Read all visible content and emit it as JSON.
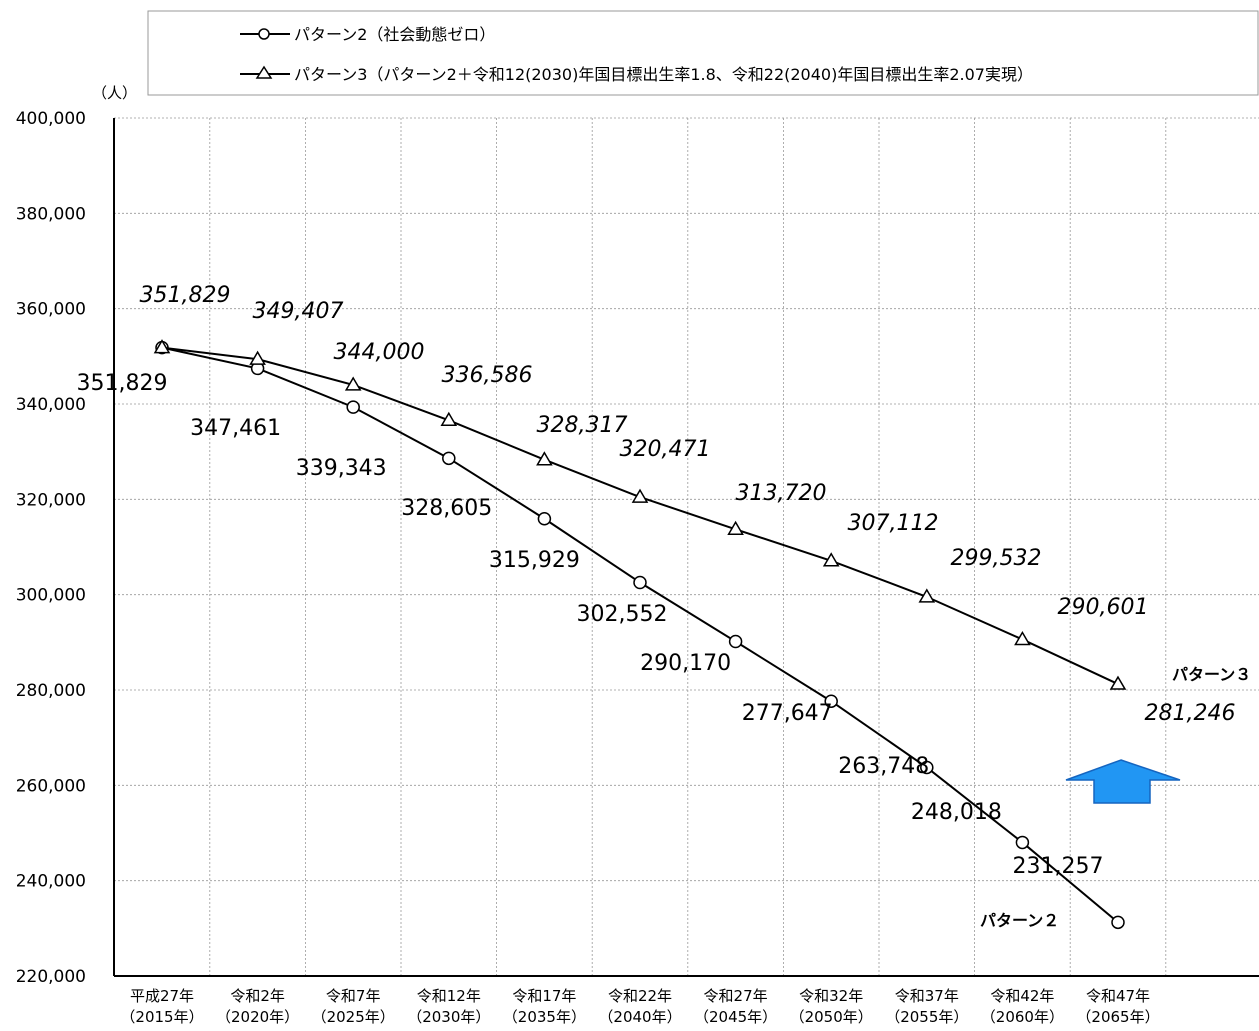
{
  "chart_data": {
    "type": "line",
    "ylabel_unit": "（人）",
    "ylim": [
      220000,
      400000
    ],
    "y_ticks": [
      "220,000",
      "240,000",
      "260,000",
      "280,000",
      "300,000",
      "320,000",
      "340,000",
      "360,000",
      "380,000",
      "400,000"
    ],
    "y_tick_values": [
      220000,
      240000,
      260000,
      280000,
      300000,
      320000,
      340000,
      360000,
      380000,
      400000
    ],
    "categories": [
      [
        "平成27年",
        "（2015年）"
      ],
      [
        "令和2年",
        "（2020年）"
      ],
      [
        "令和7年",
        "（2025年）"
      ],
      [
        "令和12年",
        "（2030年）"
      ],
      [
        "令和17年",
        "（2035年）"
      ],
      [
        "令和22年",
        "（2040年）"
      ],
      [
        "令和27年",
        "（2045年）"
      ],
      [
        "令和32年",
        "（2050年）"
      ],
      [
        "令和37年",
        "（2055年）"
      ],
      [
        "令和42年",
        "（2060年）"
      ],
      [
        "令和47年",
        "（2065年）"
      ]
    ],
    "grid": true,
    "legend_position": "top",
    "series": [
      {
        "name": "パターン2（社会動態ゼロ）",
        "marker": "circle",
        "values": [
          351829,
          347461,
          339343,
          328605,
          315929,
          302552,
          290170,
          277647,
          263748,
          248018,
          231257
        ],
        "labels": [
          "351,829",
          "347,461",
          "339,343",
          "328,605",
          "315,929",
          "302,552",
          "290,170",
          "277,647",
          "263,748",
          "248,018",
          "231,257"
        ],
        "end_label": "パターン２"
      },
      {
        "name": "パターン3（パターン2＋令和12(2030)年国目標出生率1.8、令和22(2040)年国目標出生率2.07実現）",
        "marker": "triangle",
        "values": [
          351829,
          349407,
          344000,
          336586,
          328317,
          320471,
          313720,
          307112,
          299532,
          290601,
          281246
        ],
        "labels": [
          "351,829",
          "349,407",
          "344,000",
          "336,586",
          "328,317",
          "320,471",
          "313,720",
          "307,112",
          "299,532",
          "290,601",
          "281,246"
        ],
        "end_label": "パターン３"
      }
    ],
    "arrow_color": "#2196f3",
    "arrow_stroke": "#1565c0",
    "line_color": "#000000",
    "grid_color": "#999999"
  }
}
